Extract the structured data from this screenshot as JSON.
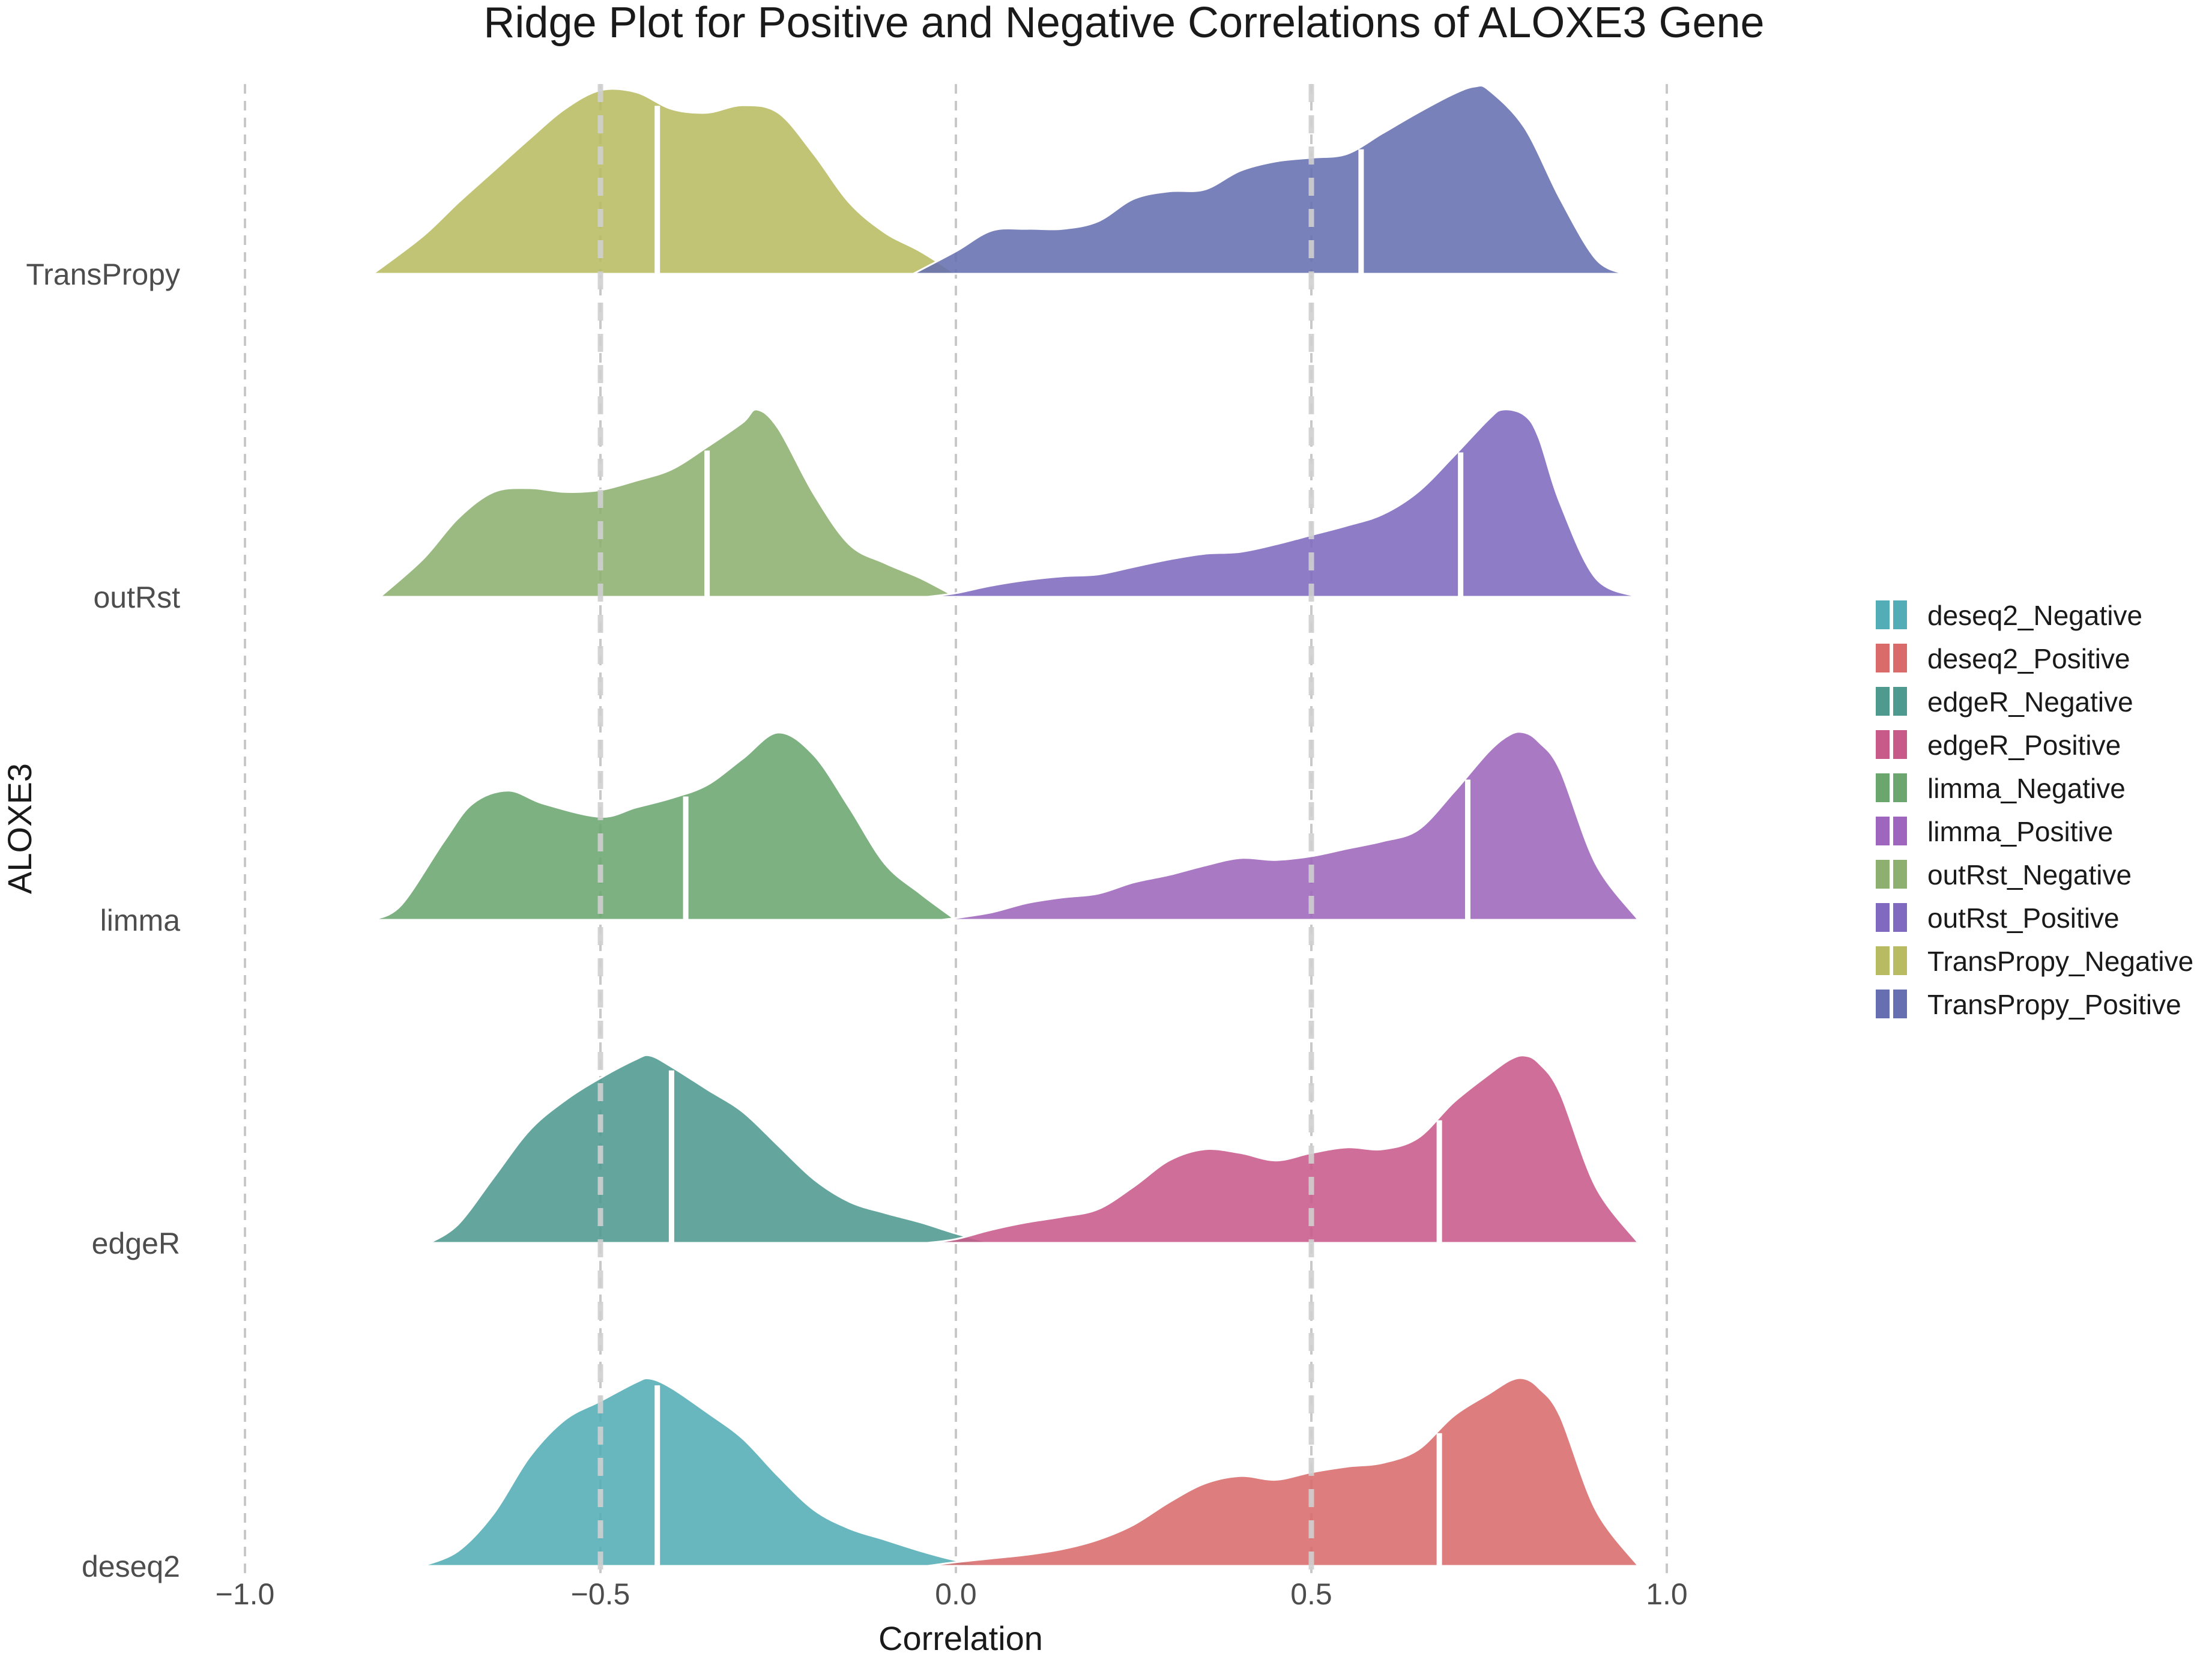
{
  "chart_data": {
    "type": "area",
    "subtype": "ridgeline",
    "title": "Ridge Plot for Positive and Negative Correlations of ALOXE3 Gene",
    "xlabel": "Correlation",
    "ylabel": "ALOXE3",
    "xlim": [
      -1.0,
      1.0
    ],
    "x_ticks": [
      "-1.0",
      "-0.5",
      "0.0",
      "0.5",
      "1.0"
    ],
    "x_tick_values": [
      -1.0,
      -0.5,
      0.0,
      0.5,
      1.0
    ],
    "grid": "dashed vertical lines at x ticks; heavier dashed lines at -0.5 and 0.5",
    "emphasis_lines": [
      -0.5,
      0.5
    ],
    "legend_position": "right",
    "categories": [
      "deseq2",
      "edgeR",
      "limma",
      "outRst",
      "TransPropy"
    ],
    "series": [
      {
        "name": "deseq2_Negative",
        "color": "#53ADB6",
        "category": "deseq2",
        "median": -0.42,
        "x": [
          -0.75,
          -0.7,
          -0.65,
          -0.6,
          -0.55,
          -0.5,
          -0.45,
          -0.43,
          -0.4,
          -0.35,
          -0.3,
          -0.25,
          -0.2,
          -0.15,
          -0.1,
          -0.05,
          0.0,
          0.05
        ],
        "y": [
          0.0,
          0.08,
          0.28,
          0.58,
          0.78,
          0.88,
          0.98,
          1.0,
          0.95,
          0.82,
          0.68,
          0.48,
          0.3,
          0.2,
          0.14,
          0.08,
          0.03,
          0.0
        ]
      },
      {
        "name": "deseq2_Positive",
        "color": "#D96B6B",
        "category": "deseq2",
        "median": 0.68,
        "x": [
          -0.04,
          0.0,
          0.05,
          0.1,
          0.15,
          0.2,
          0.25,
          0.3,
          0.35,
          0.4,
          0.45,
          0.5,
          0.55,
          0.6,
          0.65,
          0.7,
          0.75,
          0.78,
          0.8,
          0.82,
          0.85,
          0.9,
          0.96
        ],
        "y": [
          0.0,
          0.02,
          0.04,
          0.06,
          0.09,
          0.14,
          0.22,
          0.34,
          0.44,
          0.48,
          0.46,
          0.5,
          0.53,
          0.55,
          0.62,
          0.8,
          0.92,
          0.99,
          1.0,
          0.95,
          0.8,
          0.3,
          0.0
        ]
      },
      {
        "name": "edgeR_Negative",
        "color": "#4E9A8F",
        "category": "edgeR",
        "median": -0.4,
        "x": [
          -0.74,
          -0.7,
          -0.65,
          -0.6,
          -0.55,
          -0.5,
          -0.45,
          -0.43,
          -0.4,
          -0.35,
          -0.3,
          -0.25,
          -0.2,
          -0.15,
          -0.1,
          -0.05,
          0.0,
          0.05
        ],
        "y": [
          0.0,
          0.1,
          0.35,
          0.6,
          0.76,
          0.88,
          0.98,
          1.0,
          0.94,
          0.82,
          0.7,
          0.52,
          0.34,
          0.22,
          0.16,
          0.11,
          0.05,
          0.0
        ]
      },
      {
        "name": "edgeR_Positive",
        "color": "#C85A8A",
        "category": "edgeR",
        "median": 0.68,
        "x": [
          -0.04,
          0.0,
          0.05,
          0.1,
          0.15,
          0.2,
          0.25,
          0.3,
          0.35,
          0.4,
          0.45,
          0.5,
          0.55,
          0.6,
          0.65,
          0.7,
          0.75,
          0.78,
          0.8,
          0.82,
          0.85,
          0.9,
          0.96
        ],
        "y": [
          0.0,
          0.02,
          0.07,
          0.11,
          0.14,
          0.18,
          0.3,
          0.44,
          0.5,
          0.48,
          0.44,
          0.48,
          0.51,
          0.5,
          0.56,
          0.75,
          0.9,
          0.98,
          1.0,
          0.96,
          0.8,
          0.3,
          0.0
        ]
      },
      {
        "name": "limma_Negative",
        "color": "#6BA66F",
        "category": "limma",
        "median": -0.38,
        "x": [
          -0.82,
          -0.78,
          -0.72,
          -0.68,
          -0.63,
          -0.58,
          -0.5,
          -0.45,
          -0.4,
          -0.35,
          -0.3,
          -0.25,
          -0.2,
          -0.15,
          -0.1,
          -0.05,
          0.0
        ],
        "y": [
          0.0,
          0.08,
          0.42,
          0.62,
          0.69,
          0.62,
          0.55,
          0.6,
          0.65,
          0.72,
          0.86,
          1.0,
          0.88,
          0.6,
          0.3,
          0.14,
          0.0
        ]
      },
      {
        "name": "limma_Positive",
        "color": "#9E66BC",
        "category": "limma",
        "median": 0.72,
        "x": [
          -0.02,
          0.0,
          0.05,
          0.1,
          0.15,
          0.2,
          0.25,
          0.3,
          0.35,
          0.4,
          0.45,
          0.5,
          0.55,
          0.6,
          0.65,
          0.7,
          0.75,
          0.78,
          0.8,
          0.82,
          0.85,
          0.9,
          0.96
        ],
        "y": [
          0.0,
          0.01,
          0.04,
          0.09,
          0.12,
          0.14,
          0.2,
          0.24,
          0.29,
          0.33,
          0.32,
          0.34,
          0.38,
          0.42,
          0.48,
          0.68,
          0.9,
          0.99,
          1.0,
          0.95,
          0.8,
          0.3,
          0.0
        ]
      },
      {
        "name": "outRst_Negative",
        "color": "#8DB070",
        "category": "outRst",
        "median": -0.35,
        "x": [
          -0.81,
          -0.75,
          -0.7,
          -0.65,
          -0.6,
          -0.55,
          -0.5,
          -0.45,
          -0.4,
          -0.35,
          -0.3,
          -0.28,
          -0.25,
          -0.2,
          -0.15,
          -0.1,
          -0.05,
          0.0
        ],
        "y": [
          0.0,
          0.2,
          0.42,
          0.56,
          0.58,
          0.56,
          0.57,
          0.62,
          0.68,
          0.8,
          0.93,
          1.0,
          0.9,
          0.55,
          0.28,
          0.18,
          0.1,
          0.0
        ]
      },
      {
        "name": "outRst_Positive",
        "color": "#7F6ABF",
        "category": "outRst",
        "median": 0.71,
        "x": [
          -0.04,
          0.0,
          0.05,
          0.1,
          0.15,
          0.2,
          0.25,
          0.3,
          0.35,
          0.4,
          0.45,
          0.5,
          0.55,
          0.6,
          0.65,
          0.7,
          0.75,
          0.77,
          0.8,
          0.82,
          0.85,
          0.9,
          0.96
        ],
        "y": [
          0.0,
          0.02,
          0.06,
          0.09,
          0.11,
          0.12,
          0.16,
          0.2,
          0.23,
          0.24,
          0.28,
          0.33,
          0.38,
          0.44,
          0.56,
          0.75,
          0.95,
          1.0,
          0.97,
          0.85,
          0.5,
          0.1,
          0.0
        ]
      },
      {
        "name": "TransPropy_Negative",
        "color": "#B8BB62",
        "category": "TransPropy",
        "median": -0.42,
        "x": [
          -0.82,
          -0.75,
          -0.7,
          -0.65,
          -0.6,
          -0.55,
          -0.5,
          -0.45,
          -0.4,
          -0.35,
          -0.3,
          -0.25,
          -0.2,
          -0.15,
          -0.1,
          -0.05,
          0.0
        ],
        "y": [
          0.0,
          0.2,
          0.38,
          0.55,
          0.72,
          0.88,
          0.98,
          0.97,
          0.88,
          0.86,
          0.9,
          0.86,
          0.64,
          0.38,
          0.22,
          0.12,
          0.0
        ]
      },
      {
        "name": "TransPropy_Positive",
        "color": "#6670B0",
        "category": "TransPropy",
        "median": 0.57,
        "x": [
          -0.06,
          0.0,
          0.05,
          0.1,
          0.15,
          0.2,
          0.25,
          0.3,
          0.35,
          0.4,
          0.45,
          0.5,
          0.55,
          0.6,
          0.65,
          0.7,
          0.73,
          0.75,
          0.8,
          0.85,
          0.9,
          0.94
        ],
        "y": [
          0.0,
          0.12,
          0.23,
          0.24,
          0.24,
          0.28,
          0.4,
          0.44,
          0.45,
          0.55,
          0.6,
          0.62,
          0.64,
          0.75,
          0.86,
          0.96,
          1.0,
          0.98,
          0.78,
          0.4,
          0.08,
          0.0
        ]
      }
    ]
  }
}
